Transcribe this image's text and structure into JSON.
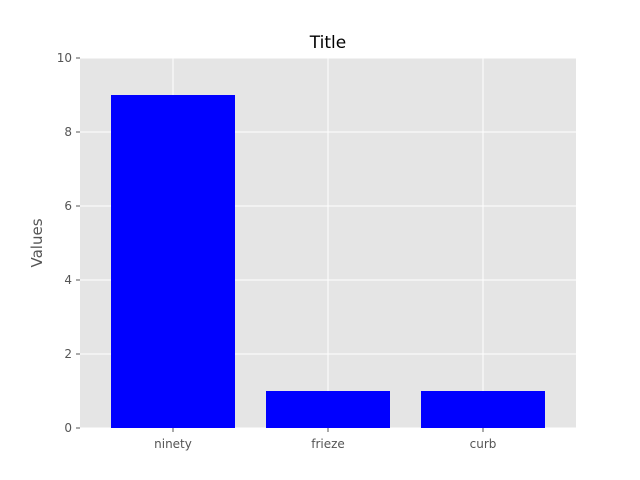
{
  "chart_data": {
    "type": "bar",
    "title": "Title",
    "xlabel": "",
    "ylabel": "Values",
    "categories": [
      "ninety",
      "frieze",
      "curb"
    ],
    "values": [
      9,
      1,
      1
    ],
    "ylim": [
      0,
      10
    ],
    "yticks": [
      0,
      2,
      4,
      6,
      8,
      10
    ],
    "grid": true,
    "bar_color": "#0000ff",
    "plot_bg": "#e5e5e5",
    "grid_color": "#ffffff"
  }
}
